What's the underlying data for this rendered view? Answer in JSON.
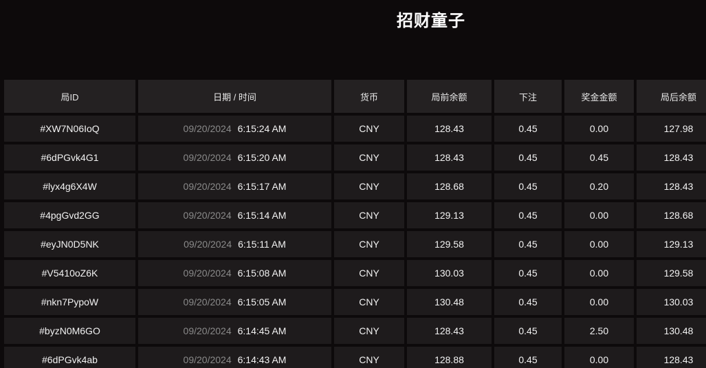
{
  "page": {
    "title": "招财童子",
    "colors": {
      "page_bg": "#0d0a0b",
      "row_bg": "#1e1b1c",
      "header_bg": "#242122",
      "text_primary": "#f2f2f2",
      "text_muted": "#8a8a8a"
    }
  },
  "table": {
    "columns": [
      {
        "key": "round_id",
        "label": "局ID"
      },
      {
        "key": "datetime",
        "label": "日期 / 时间"
      },
      {
        "key": "currency",
        "label": "货币"
      },
      {
        "key": "balance_before",
        "label": "局前余额"
      },
      {
        "key": "bet",
        "label": "下注"
      },
      {
        "key": "prize",
        "label": "奖金金额"
      },
      {
        "key": "balance_after",
        "label": "局后余额"
      }
    ],
    "rows": [
      {
        "round_id": "#XW7N06IoQ",
        "date": "09/20/2024",
        "time": "6:15:24 AM",
        "currency": "CNY",
        "balance_before": "128.43",
        "bet": "0.45",
        "prize": "0.00",
        "balance_after": "127.98"
      },
      {
        "round_id": "#6dPGvk4G1",
        "date": "09/20/2024",
        "time": "6:15:20 AM",
        "currency": "CNY",
        "balance_before": "128.43",
        "bet": "0.45",
        "prize": "0.45",
        "balance_after": "128.43"
      },
      {
        "round_id": "#lyx4g6X4W",
        "date": "09/20/2024",
        "time": "6:15:17 AM",
        "currency": "CNY",
        "balance_before": "128.68",
        "bet": "0.45",
        "prize": "0.20",
        "balance_after": "128.43"
      },
      {
        "round_id": "#4pgGvd2GG",
        "date": "09/20/2024",
        "time": "6:15:14 AM",
        "currency": "CNY",
        "balance_before": "129.13",
        "bet": "0.45",
        "prize": "0.00",
        "balance_after": "128.68"
      },
      {
        "round_id": "#eyJN0D5NK",
        "date": "09/20/2024",
        "time": "6:15:11 AM",
        "currency": "CNY",
        "balance_before": "129.58",
        "bet": "0.45",
        "prize": "0.00",
        "balance_after": "129.13"
      },
      {
        "round_id": "#V5410oZ6K",
        "date": "09/20/2024",
        "time": "6:15:08 AM",
        "currency": "CNY",
        "balance_before": "130.03",
        "bet": "0.45",
        "prize": "0.00",
        "balance_after": "129.58"
      },
      {
        "round_id": "#nkn7PypoW",
        "date": "09/20/2024",
        "time": "6:15:05 AM",
        "currency": "CNY",
        "balance_before": "130.48",
        "bet": "0.45",
        "prize": "0.00",
        "balance_after": "130.03"
      },
      {
        "round_id": "#byzN0M6GO",
        "date": "09/20/2024",
        "time": "6:14:45 AM",
        "currency": "CNY",
        "balance_before": "128.43",
        "bet": "0.45",
        "prize": "2.50",
        "balance_after": "130.48"
      },
      {
        "round_id": "#6dPGvk4ab",
        "date": "09/20/2024",
        "time": "6:14:43 AM",
        "currency": "CNY",
        "balance_before": "128.88",
        "bet": "0.45",
        "prize": "0.00",
        "balance_after": "128.43"
      }
    ]
  }
}
